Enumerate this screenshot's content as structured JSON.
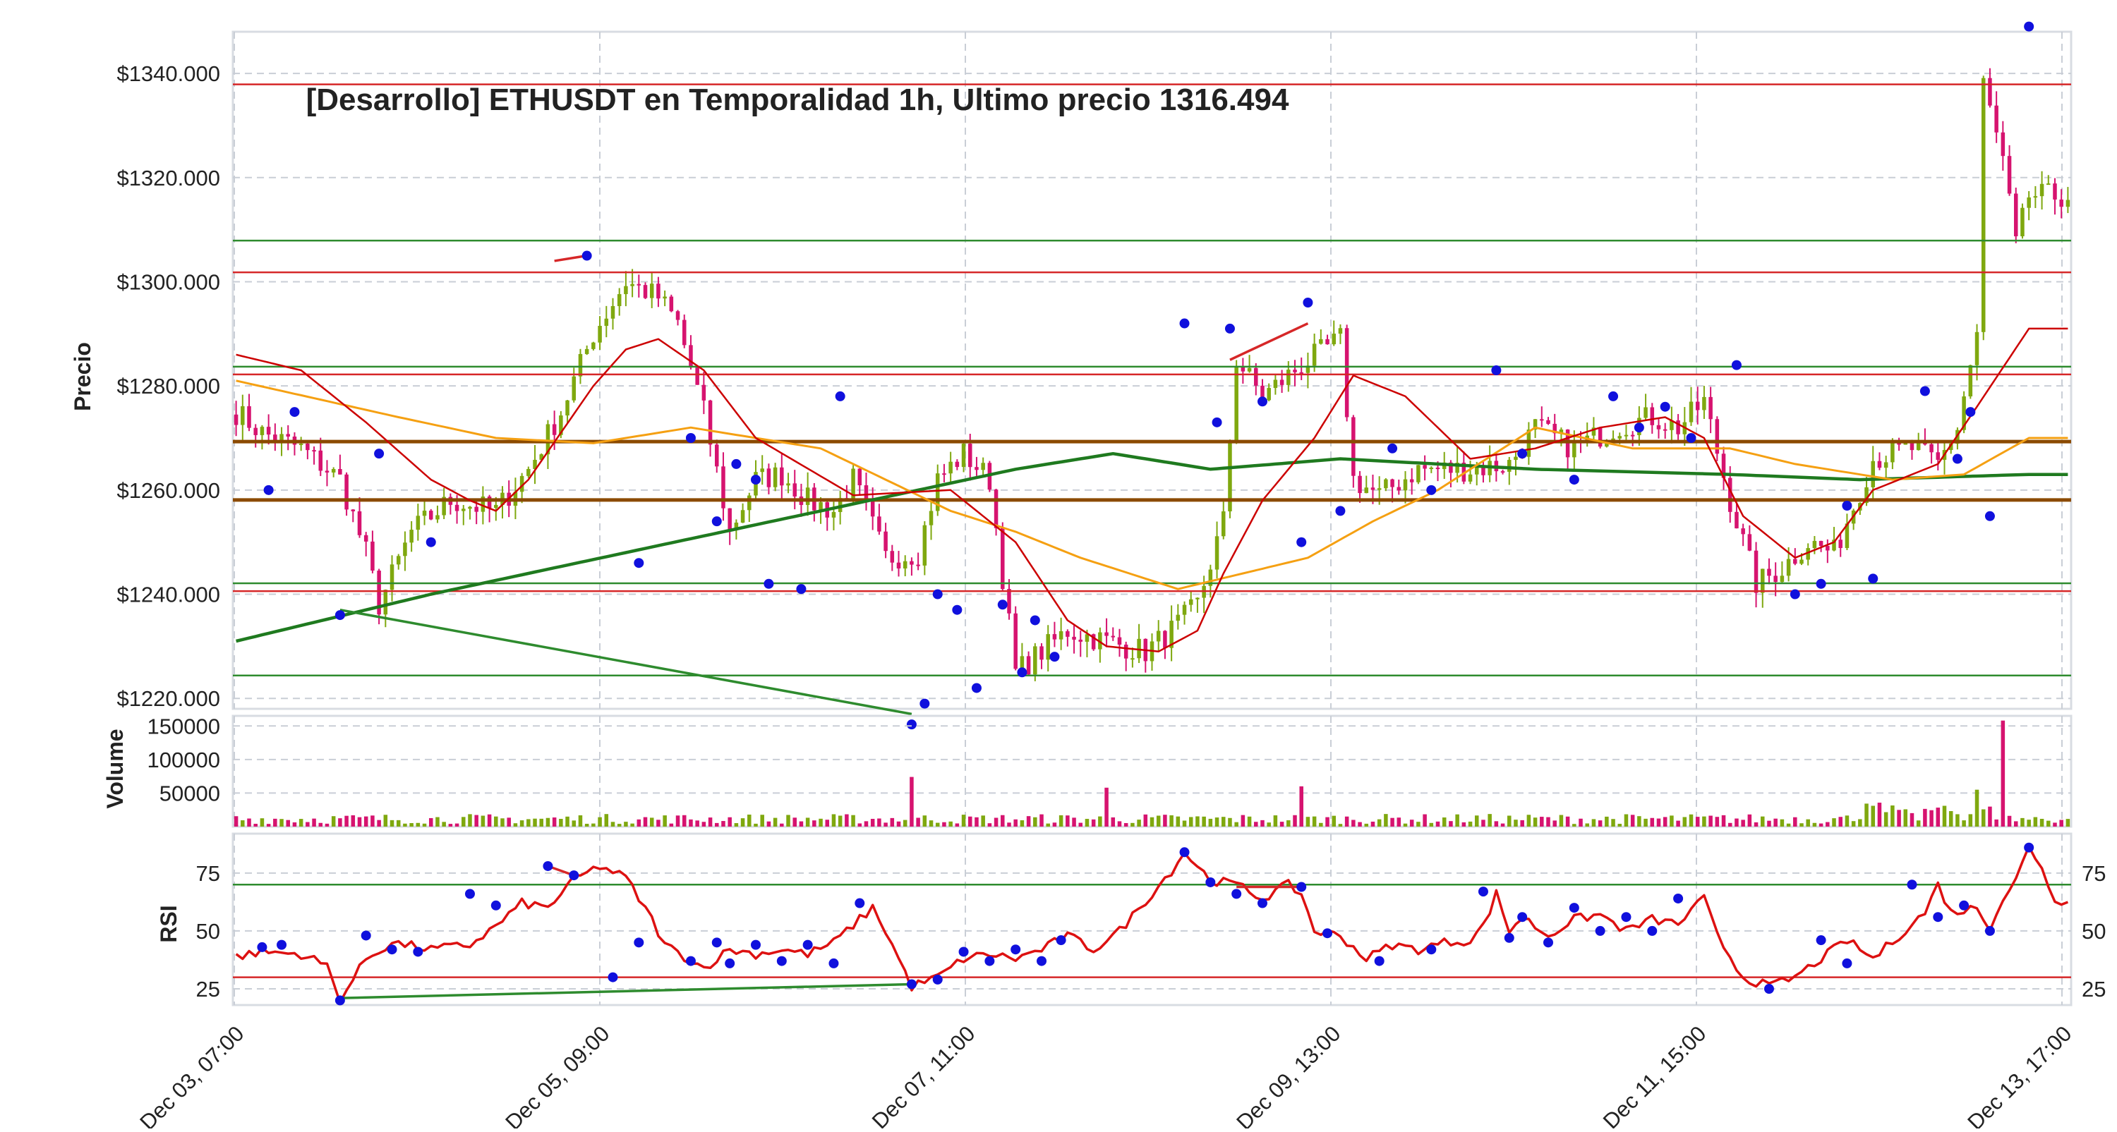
{
  "chart_data": {
    "type": "candlestick",
    "title": "[Desarrollo] ETHUSDT en Temporalidad 1h, Ultimo precio 1316.494",
    "x_ticks": [
      "Dec 03, 07:00",
      "Dec 05, 09:00",
      "Dec 07, 11:00",
      "Dec 09, 13:00",
      "Dec 11, 15:00",
      "Dec 13, 17:00"
    ],
    "price_panel": {
      "ylabel": "Precio",
      "ylim": [
        1218,
        1348
      ],
      "y_ticks": [
        "$1220.000",
        "$1240.000",
        "$1260.000",
        "$1280.000",
        "$1300.000",
        "$1320.000",
        "$1340.000"
      ],
      "y_tick_values": [
        1220,
        1240,
        1260,
        1280,
        1300,
        1320,
        1340
      ],
      "close_anchors": [
        [
          0,
          1275
        ],
        [
          4,
          1271
        ],
        [
          10,
          1268
        ],
        [
          16,
          1262
        ],
        [
          20,
          1248
        ],
        [
          22,
          1238
        ],
        [
          27,
          1252
        ],
        [
          33,
          1258
        ],
        [
          40,
          1256
        ],
        [
          45,
          1264
        ],
        [
          50,
          1275
        ],
        [
          55,
          1290
        ],
        [
          60,
          1300
        ],
        [
          65,
          1297
        ],
        [
          68,
          1292
        ],
        [
          72,
          1275
        ],
        [
          76,
          1252
        ],
        [
          80,
          1262
        ],
        [
          84,
          1263
        ],
        [
          88,
          1258
        ],
        [
          92,
          1256
        ],
        [
          95,
          1262
        ],
        [
          100,
          1247
        ],
        [
          105,
          1248
        ],
        [
          108,
          1262
        ],
        [
          112,
          1267
        ],
        [
          116,
          1262
        ],
        [
          120,
          1225
        ],
        [
          124,
          1229
        ],
        [
          128,
          1233
        ],
        [
          134,
          1231
        ],
        [
          140,
          1229
        ],
        [
          144,
          1233
        ],
        [
          148,
          1238
        ],
        [
          152,
          1254
        ],
        [
          154,
          1285
        ],
        [
          158,
          1278
        ],
        [
          164,
          1284
        ],
        [
          170,
          1289
        ],
        [
          172,
          1262
        ],
        [
          176,
          1259
        ],
        [
          182,
          1264
        ],
        [
          190,
          1264
        ],
        [
          196,
          1265
        ],
        [
          200,
          1272
        ],
        [
          206,
          1268
        ],
        [
          212,
          1272
        ],
        [
          218,
          1274
        ],
        [
          222,
          1272
        ],
        [
          226,
          1277
        ],
        [
          230,
          1258
        ],
        [
          234,
          1242
        ],
        [
          238,
          1245
        ],
        [
          242,
          1250
        ],
        [
          246,
          1248
        ],
        [
          252,
          1266
        ],
        [
          258,
          1268
        ],
        [
          262,
          1265
        ],
        [
          265,
          1272
        ],
        [
          268,
          1290
        ],
        [
          269,
          1338
        ],
        [
          272,
          1323
        ],
        [
          274,
          1307
        ],
        [
          276,
          1316.494
        ]
      ],
      "horizontal_levels": [
        {
          "value": 1337.9,
          "color": "#d62728"
        },
        {
          "value": 1301.8,
          "color": "#d62728"
        },
        {
          "value": 1282.2,
          "color": "#d62728"
        },
        {
          "value": 1240.6,
          "color": "#d62728"
        },
        {
          "value": 1307.9,
          "color": "#2e8b2e"
        },
        {
          "value": 1283.7,
          "color": "#2e8b2e"
        },
        {
          "value": 1242.1,
          "color": "#2e8b2e"
        },
        {
          "value": 1224.4,
          "color": "#2e8b2e"
        },
        {
          "value": 1269.3,
          "color": "#8b4a00"
        },
        {
          "value": 1258.1,
          "color": "#8b4a00"
        }
      ],
      "ma_slow_anchors": [
        [
          0,
          1231
        ],
        [
          30,
          1240
        ],
        [
          60,
          1248
        ],
        [
          90,
          1256
        ],
        [
          120,
          1264
        ],
        [
          130,
          1266
        ],
        [
          135,
          1267
        ],
        [
          150,
          1264
        ],
        [
          170,
          1266
        ],
        [
          200,
          1264
        ],
        [
          230,
          1263
        ],
        [
          250,
          1262
        ],
        [
          276,
          1263
        ]
      ],
      "ma_mid_anchors": [
        [
          0,
          1281
        ],
        [
          25,
          1274
        ],
        [
          40,
          1270
        ],
        [
          55,
          1269
        ],
        [
          70,
          1272
        ],
        [
          90,
          1268
        ],
        [
          110,
          1256
        ],
        [
          120,
          1252
        ],
        [
          130,
          1247
        ],
        [
          140,
          1243
        ],
        [
          145,
          1241
        ],
        [
          155,
          1244
        ],
        [
          165,
          1247
        ],
        [
          175,
          1254
        ],
        [
          185,
          1260
        ],
        [
          200,
          1272
        ],
        [
          215,
          1268
        ],
        [
          230,
          1268
        ],
        [
          240,
          1265
        ],
        [
          255,
          1262
        ],
        [
          266,
          1263
        ],
        [
          276,
          1270
        ]
      ],
      "ma_fast_anchors": [
        [
          0,
          1286
        ],
        [
          10,
          1283
        ],
        [
          20,
          1273
        ],
        [
          30,
          1262
        ],
        [
          36,
          1258
        ],
        [
          40,
          1256
        ],
        [
          45,
          1262
        ],
        [
          55,
          1280
        ],
        [
          60,
          1287
        ],
        [
          65,
          1289
        ],
        [
          72,
          1283
        ],
        [
          80,
          1270
        ],
        [
          95,
          1259
        ],
        [
          110,
          1260
        ],
        [
          120,
          1250
        ],
        [
          128,
          1235
        ],
        [
          134,
          1230
        ],
        [
          142,
          1229
        ],
        [
          148,
          1233
        ],
        [
          152,
          1244
        ],
        [
          158,
          1258
        ],
        [
          166,
          1270
        ],
        [
          172,
          1282
        ],
        [
          180,
          1278
        ],
        [
          190,
          1266
        ],
        [
          200,
          1268
        ],
        [
          210,
          1272
        ],
        [
          220,
          1274
        ],
        [
          226,
          1270
        ],
        [
          232,
          1255
        ],
        [
          240,
          1247
        ],
        [
          246,
          1250
        ],
        [
          252,
          1260
        ],
        [
          262,
          1265
        ],
        [
          268,
          1276
        ],
        [
          276,
          1291
        ]
      ],
      "pivot_points": [
        [
          5,
          1260
        ],
        [
          9,
          1275
        ],
        [
          16,
          1236
        ],
        [
          22,
          1267
        ],
        [
          30,
          1250
        ],
        [
          54,
          1305
        ],
        [
          62,
          1246
        ],
        [
          70,
          1270
        ],
        [
          74,
          1254
        ],
        [
          77,
          1265
        ],
        [
          80,
          1262
        ],
        [
          82,
          1242
        ],
        [
          87,
          1241
        ],
        [
          93,
          1278
        ],
        [
          104,
          1215
        ],
        [
          106,
          1219
        ],
        [
          108,
          1240
        ],
        [
          111,
          1237
        ],
        [
          114,
          1222
        ],
        [
          118,
          1238
        ],
        [
          121,
          1225
        ],
        [
          123,
          1235
        ],
        [
          126,
          1228
        ],
        [
          146,
          1292
        ],
        [
          151,
          1273
        ],
        [
          153,
          1291
        ],
        [
          158,
          1277
        ],
        [
          164,
          1250
        ],
        [
          165,
          1296
        ],
        [
          170,
          1256
        ],
        [
          178,
          1268
        ],
        [
          184,
          1260
        ],
        [
          194,
          1283
        ],
        [
          198,
          1267
        ],
        [
          206,
          1262
        ],
        [
          212,
          1278
        ],
        [
          216,
          1272
        ],
        [
          220,
          1276
        ],
        [
          224,
          1270
        ],
        [
          231,
          1284
        ],
        [
          240,
          1240
        ],
        [
          244,
          1242
        ],
        [
          248,
          1257
        ],
        [
          252,
          1243
        ],
        [
          260,
          1279
        ],
        [
          265,
          1266
        ],
        [
          267,
          1275
        ],
        [
          270,
          1255
        ],
        [
          276,
          1349
        ]
      ],
      "trend_lines": [
        {
          "from": [
            16,
            1237
          ],
          "to": [
            104,
            1217
          ],
          "color": "#2e8b2e"
        },
        {
          "from": [
            49,
            1304
          ],
          "to": [
            54,
            1305
          ],
          "color": "#d62728"
        },
        {
          "from": [
            153,
            1285
          ],
          "to": [
            165,
            1292
          ],
          "color": "#d62728"
        }
      ]
    },
    "volume_panel": {
      "ylabel": "Volume",
      "ylim": [
        0,
        165000
      ],
      "y_ticks": [
        "50000",
        "100000",
        "150000"
      ],
      "y_tick_values": [
        50000,
        100000,
        150000
      ],
      "spike_bars": [
        [
          104,
          74000
        ],
        [
          134,
          58000
        ],
        [
          164,
          60000
        ],
        [
          268,
          55000
        ],
        [
          272,
          158000
        ]
      ]
    },
    "rsi_panel": {
      "ylabel": "RSI",
      "ylim": [
        18,
        92
      ],
      "y_ticks": [
        "25",
        "50",
        "75"
      ],
      "y_tick_values": [
        25,
        50,
        75
      ],
      "overbought": 70,
      "oversold": 30,
      "rsi_anchors": [
        [
          0,
          39
        ],
        [
          4,
          41
        ],
        [
          10,
          40
        ],
        [
          14,
          35
        ],
        [
          16,
          20
        ],
        [
          20,
          38
        ],
        [
          24,
          45
        ],
        [
          30,
          42
        ],
        [
          36,
          44
        ],
        [
          40,
          52
        ],
        [
          44,
          62
        ],
        [
          48,
          60
        ],
        [
          52,
          72
        ],
        [
          56,
          78
        ],
        [
          60,
          73
        ],
        [
          64,
          55
        ],
        [
          66,
          44
        ],
        [
          72,
          34
        ],
        [
          76,
          42
        ],
        [
          80,
          40
        ],
        [
          84,
          42
        ],
        [
          88,
          40
        ],
        [
          92,
          45
        ],
        [
          96,
          55
        ],
        [
          98,
          60
        ],
        [
          100,
          50
        ],
        [
          104,
          26
        ],
        [
          108,
          30
        ],
        [
          112,
          38
        ],
        [
          116,
          40
        ],
        [
          120,
          38
        ],
        [
          124,
          42
        ],
        [
          128,
          48
        ],
        [
          132,
          42
        ],
        [
          136,
          50
        ],
        [
          140,
          63
        ],
        [
          144,
          76
        ],
        [
          146,
          84
        ],
        [
          150,
          72
        ],
        [
          154,
          70
        ],
        [
          158,
          64
        ],
        [
          162,
          70
        ],
        [
          164,
          66
        ],
        [
          166,
          50
        ],
        [
          170,
          48
        ],
        [
          174,
          38
        ],
        [
          178,
          44
        ],
        [
          182,
          42
        ],
        [
          186,
          45
        ],
        [
          190,
          46
        ],
        [
          192,
          52
        ],
        [
          194,
          66
        ],
        [
          196,
          50
        ],
        [
          198,
          56
        ],
        [
          202,
          48
        ],
        [
          206,
          55
        ],
        [
          210,
          57
        ],
        [
          214,
          50
        ],
        [
          218,
          55
        ],
        [
          222,
          53
        ],
        [
          226,
          64
        ],
        [
          228,
          48
        ],
        [
          232,
          30
        ],
        [
          236,
          26
        ],
        [
          240,
          30
        ],
        [
          244,
          38
        ],
        [
          248,
          46
        ],
        [
          252,
          38
        ],
        [
          256,
          48
        ],
        [
          260,
          58
        ],
        [
          262,
          70
        ],
        [
          264,
          58
        ],
        [
          268,
          60
        ],
        [
          270,
          52
        ],
        [
          272,
          64
        ],
        [
          274,
          72
        ],
        [
          276,
          86
        ],
        [
          278,
          78
        ],
        [
          280,
          62
        ],
        [
          282,
          64
        ]
      ],
      "pivot_points": [
        [
          4,
          43
        ],
        [
          7,
          44
        ],
        [
          16,
          20
        ],
        [
          20,
          48
        ],
        [
          24,
          42
        ],
        [
          28,
          41
        ],
        [
          36,
          66
        ],
        [
          40,
          61
        ],
        [
          48,
          78
        ],
        [
          52,
          74
        ],
        [
          58,
          30
        ],
        [
          62,
          45
        ],
        [
          70,
          37
        ],
        [
          74,
          45
        ],
        [
          76,
          36
        ],
        [
          80,
          44
        ],
        [
          84,
          37
        ],
        [
          88,
          44
        ],
        [
          92,
          36
        ],
        [
          96,
          62
        ],
        [
          104,
          27
        ],
        [
          108,
          29
        ],
        [
          112,
          41
        ],
        [
          116,
          37
        ],
        [
          120,
          42
        ],
        [
          124,
          37
        ],
        [
          127,
          46
        ],
        [
          146,
          84
        ],
        [
          150,
          71
        ],
        [
          154,
          66
        ],
        [
          158,
          62
        ],
        [
          164,
          69
        ],
        [
          168,
          49
        ],
        [
          176,
          37
        ],
        [
          184,
          42
        ],
        [
          192,
          67
        ],
        [
          196,
          47
        ],
        [
          198,
          56
        ],
        [
          202,
          45
        ],
        [
          206,
          60
        ],
        [
          210,
          50
        ],
        [
          214,
          56
        ],
        [
          218,
          50
        ],
        [
          222,
          64
        ],
        [
          236,
          25
        ],
        [
          244,
          46
        ],
        [
          248,
          36
        ],
        [
          258,
          70
        ],
        [
          262,
          56
        ],
        [
          266,
          61
        ],
        [
          270,
          50
        ],
        [
          276,
          86
        ]
      ],
      "divergence_lines": [
        {
          "from": [
            16,
            21
          ],
          "to": [
            104,
            27
          ],
          "color": "#2e8b2e"
        },
        {
          "from": [
            48,
            78
          ],
          "to": [
            52,
            74
          ],
          "color": "#d62728"
        },
        {
          "from": [
            154,
            69
          ],
          "to": [
            164,
            69
          ],
          "color": "#d62728"
        }
      ]
    },
    "colors": {
      "candle_up": "#7fa80f",
      "candle_down": "#d6136f",
      "ma_fast": "#cc0000",
      "ma_mid": "#f5a012",
      "ma_slow": "#1f7a1f",
      "rsi_line": "#dd1111",
      "pivot": "#1010dd",
      "grid": "#c9ced6"
    }
  }
}
